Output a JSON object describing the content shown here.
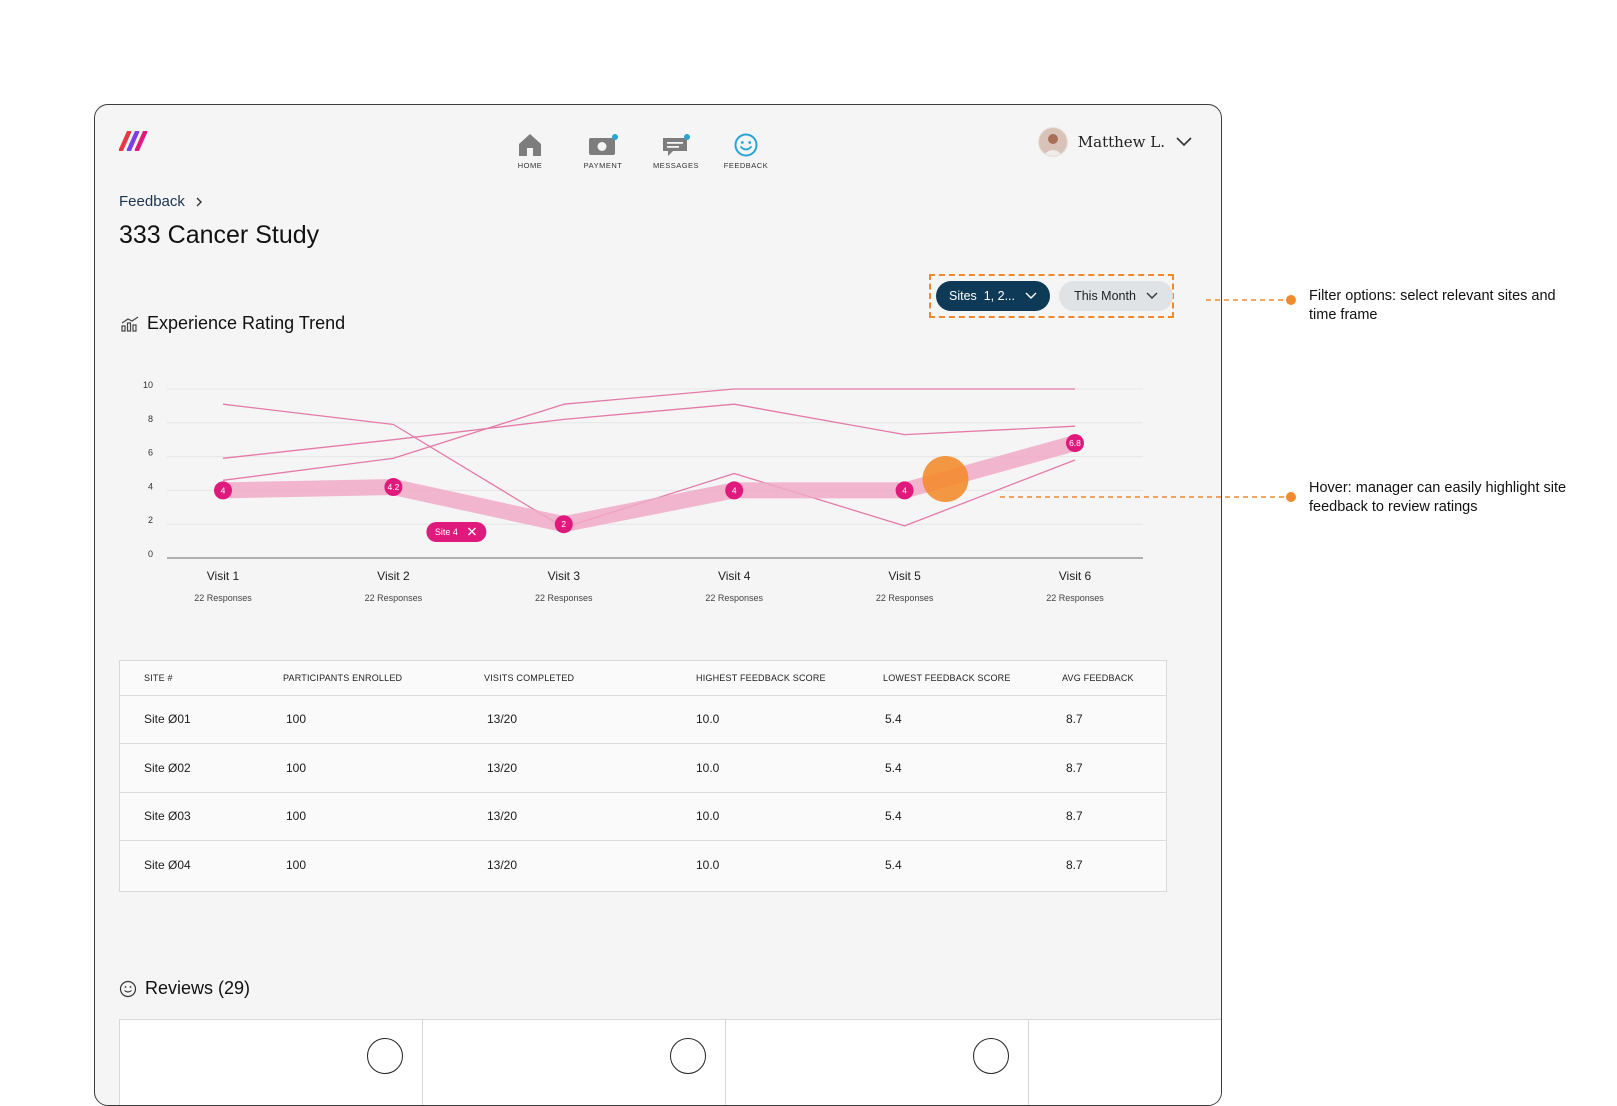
{
  "nav": [
    {
      "key": "home",
      "label": "HOME",
      "icon": "home-icon"
    },
    {
      "key": "payment",
      "label": "PAYMENT",
      "icon": "payment-icon"
    },
    {
      "key": "messages",
      "label": "MESSAGES",
      "icon": "messages-icon"
    },
    {
      "key": "feedback",
      "label": "FEEDBACK",
      "icon": "smiley-icon"
    }
  ],
  "user": {
    "name": "Matthew L."
  },
  "breadcrumb": {
    "label": "Feedback"
  },
  "page": {
    "title": "333 Cancer Study"
  },
  "filters": {
    "sites_label": "Sites  1, 2...",
    "time_label": "This Month"
  },
  "section": {
    "title": "Experience Rating Trend"
  },
  "chart_data": {
    "type": "line",
    "title": "Experience Rating Trend",
    "categories": [
      "Visit 1",
      "Visit 2",
      "Visit 3",
      "Visit 4",
      "Visit 5",
      "Visit 6"
    ],
    "sublabels": [
      "22 Responses",
      "22 Responses",
      "22 Responses",
      "22 Responses",
      "22 Responses",
      "22 Responses"
    ],
    "ylim": [
      0,
      10
    ],
    "yticks": [
      0,
      2,
      4,
      6,
      8,
      10
    ],
    "series": [
      {
        "name": "Site 1",
        "values": [
          9.1,
          7.9,
          1.8,
          5.0,
          1.9,
          5.8
        ]
      },
      {
        "name": "Site 2",
        "values": [
          5.9,
          7.0,
          8.2,
          9.1,
          7.3,
          7.8
        ]
      },
      {
        "name": "Site 3",
        "values": [
          4.6,
          5.9,
          9.1,
          10,
          10,
          10
        ]
      },
      {
        "name": "Site 4",
        "values": [
          4,
          4.2,
          2,
          4,
          4,
          6.8
        ],
        "highlighted": true,
        "data_labels": [
          "4",
          "4.2",
          "2",
          "4",
          "4",
          "6.8"
        ]
      }
    ],
    "tooltip": {
      "label": "Site 4"
    },
    "accent": "#e0197d",
    "hover_color": "#f28a2a"
  },
  "table": {
    "headers": [
      "SITE #",
      "PARTICIPANTS ENROLLED",
      "VISITS COMPLETED",
      "HIGHEST FEEDBACK SCORE",
      "LOWEST FEEDBACK SCORE",
      "AVG FEEDBACK"
    ],
    "rows": [
      [
        "Site Ø01",
        "100",
        "13/20",
        "10.0",
        "5.4",
        "8.7"
      ],
      [
        "Site Ø02",
        "100",
        "13/20",
        "10.0",
        "5.4",
        "8.7"
      ],
      [
        "Site Ø03",
        "100",
        "13/20",
        "10.0",
        "5.4",
        "8.7"
      ],
      [
        "Site Ø04",
        "100",
        "13/20",
        "10.0",
        "5.4",
        "8.7"
      ]
    ]
  },
  "reviews": {
    "title": "Reviews (29)"
  },
  "annotations": {
    "filter": "Filter options: select relevant sites and time frame",
    "hover": "Hover: manager can easily highlight site feedback to review ratings"
  },
  "colors": {
    "primary": "#0f3a57",
    "accent": "#e0197d",
    "annotation": "#ef8a2e"
  }
}
